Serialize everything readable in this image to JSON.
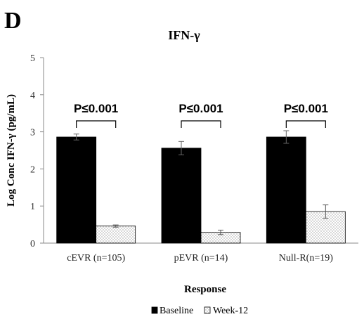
{
  "panel_label": "D",
  "chart_data": {
    "type": "bar",
    "title": "IFN-γ",
    "xlabel": "Response",
    "ylabel": "Log Conc IFN-γ (pg/mL)",
    "ylim": [
      0,
      5
    ],
    "yticks": [
      "0",
      "1",
      "2",
      "3",
      "4",
      "5"
    ],
    "categories": [
      "cEVR (n=105)",
      "pEVR (n=14)",
      "Null-R(n=19)"
    ],
    "series": [
      {
        "name": "Baseline",
        "color": "#000000",
        "pattern": "solid",
        "values": [
          2.86,
          2.56,
          2.86
        ],
        "errors": [
          0.08,
          0.18,
          0.17
        ]
      },
      {
        "name": "Week-12",
        "color": "#ffffff",
        "pattern": "dotted",
        "values": [
          0.46,
          0.29,
          0.85
        ],
        "errors": [
          0.03,
          0.06,
          0.18
        ]
      }
    ],
    "annotations": [
      "P≤0.001",
      "P≤0.001",
      "P≤0.001"
    ],
    "grid": false,
    "legend_position": "bottom"
  }
}
